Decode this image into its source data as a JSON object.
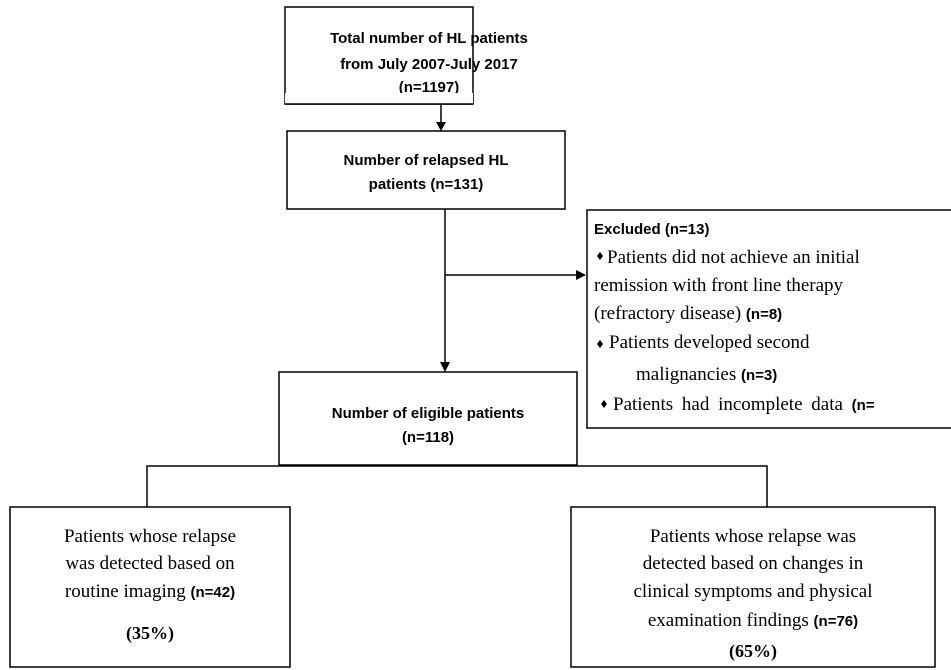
{
  "nodes": [
    {
      "lines": [
        "Total number of HL patients",
        "from July 2007-July 2017"
      ],
      "count": "(n=1197)"
    },
    {
      "lines": [
        "Number of relapsed HL",
        "patients"
      ],
      "count": "(n=131)"
    },
    {
      "lines": [
        "Number of eligible patients"
      ],
      "count": "(n=118)"
    },
    {
      "lines": [
        "Patients whose relapse",
        "was detected based on",
        "routine imaging"
      ],
      "count": "(n=42)",
      "percent": "(35%)"
    },
    {
      "lines": [
        "Patients whose relapse was",
        "detected based on changes in",
        "clinical symptoms and physical",
        "examination findings"
      ],
      "count": "(n=76)",
      "percent": "(65%)"
    }
  ],
  "excluded": {
    "title": "Excluded (n=13)",
    "items": [
      {
        "lines": [
          "Patients did not achieve an initial",
          "remission with front line therapy",
          "(refractory disease)"
        ],
        "count": "(n=8)"
      },
      {
        "lines": [
          "Patients developed second",
          "malignancies"
        ],
        "count": "(n=3)"
      },
      {
        "lines": [
          "Patients had incomplete data"
        ],
        "count": "(n="
      }
    ]
  }
}
